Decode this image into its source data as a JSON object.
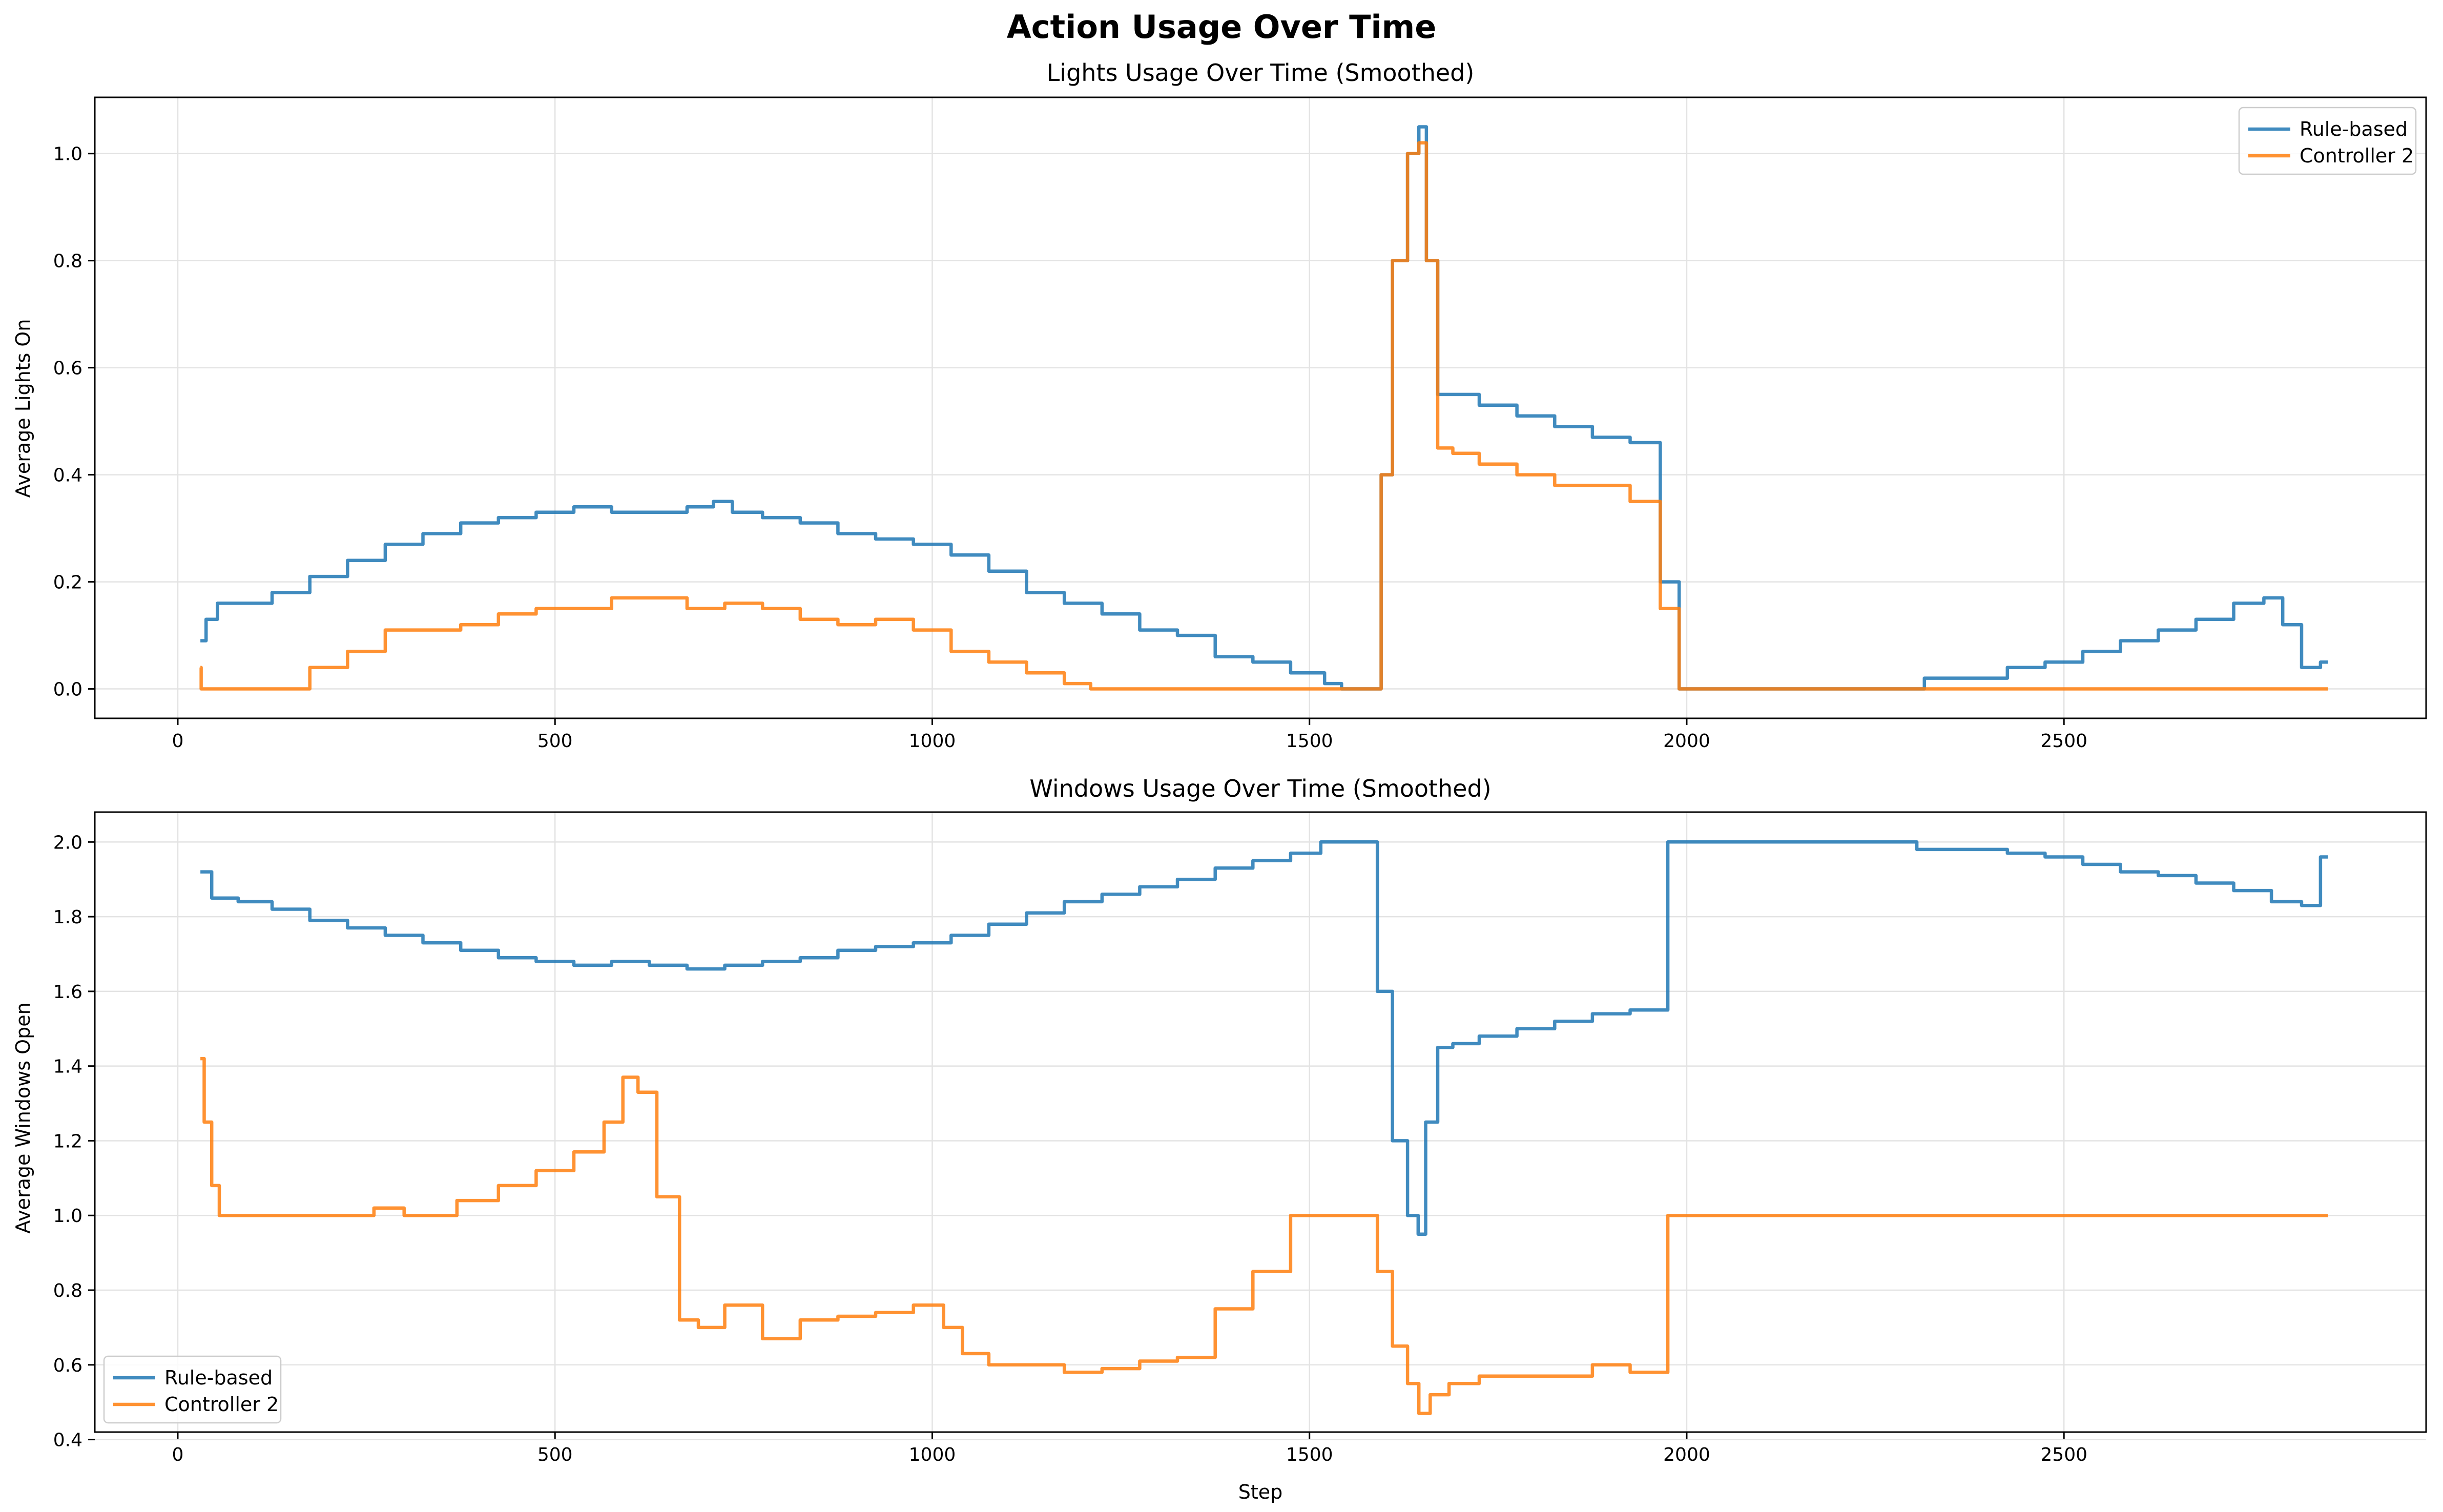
{
  "figure": {
    "suptitle": "Action Usage Over Time",
    "colors": {
      "rule": "#1f77b4",
      "ctrl": "#ff7f0e"
    },
    "grid": true
  },
  "chart_data": [
    {
      "type": "line",
      "title": "Lights Usage Over Time (Smoothed)",
      "xlabel": "",
      "ylabel": "Average Lights On",
      "xlim": [
        -110,
        2980
      ],
      "ylim": [
        -0.055,
        1.105
      ],
      "xticks": [
        0,
        500,
        1000,
        1500,
        2000,
        2500
      ],
      "xtick_labels": [
        "0",
        "500",
        "1000",
        "1500",
        "2000",
        "2500"
      ],
      "yticks": [
        0.0,
        0.2,
        0.4,
        0.6,
        0.8,
        1.0
      ],
      "ytick_labels": [
        "0.0",
        "0.2",
        "0.4",
        "0.6",
        "0.8",
        "1.0"
      ],
      "legend_position": "top-right",
      "series": [
        {
          "name": "Rule-based",
          "color": "#1f77b4",
          "x": [
            30,
            45,
            60,
            100,
            150,
            200,
            250,
            300,
            350,
            400,
            450,
            500,
            550,
            600,
            650,
            700,
            720,
            750,
            800,
            850,
            900,
            950,
            1000,
            1050,
            1100,
            1150,
            1200,
            1250,
            1300,
            1350,
            1400,
            1450,
            1500,
            1540,
            1545,
            1590,
            1600,
            1620,
            1640,
            1650,
            1660,
            1680,
            1700,
            1750,
            1800,
            1850,
            1900,
            1950,
            1980,
            2000,
            2100,
            2200,
            2310,
            2320,
            2400,
            2450,
            2500,
            2550,
            2600,
            2650,
            2700,
            2750,
            2780,
            2800,
            2830,
            2850
          ],
          "y": [
            0.09,
            0.13,
            0.16,
            0.16,
            0.18,
            0.21,
            0.24,
            0.27,
            0.29,
            0.31,
            0.32,
            0.33,
            0.34,
            0.33,
            0.33,
            0.34,
            0.35,
            0.33,
            0.32,
            0.31,
            0.29,
            0.28,
            0.27,
            0.25,
            0.22,
            0.18,
            0.16,
            0.14,
            0.11,
            0.1,
            0.06,
            0.05,
            0.03,
            0.01,
            0.0,
            0.0,
            0.4,
            0.8,
            1.0,
            1.05,
            0.8,
            0.55,
            0.55,
            0.53,
            0.51,
            0.49,
            0.47,
            0.46,
            0.2,
            0.0,
            0.0,
            0.0,
            0.0,
            0.02,
            0.02,
            0.04,
            0.05,
            0.07,
            0.09,
            0.11,
            0.13,
            0.16,
            0.17,
            0.12,
            0.04,
            0.05
          ]
        },
        {
          "name": "Controller 2",
          "color": "#ff7f0e",
          "x": [
            30,
            32,
            150,
            200,
            250,
            300,
            350,
            400,
            450,
            500,
            550,
            600,
            650,
            700,
            750,
            800,
            850,
            900,
            950,
            1000,
            1050,
            1100,
            1150,
            1200,
            1220,
            1590,
            1600,
            1620,
            1640,
            1650,
            1660,
            1680,
            1700,
            1750,
            1800,
            1850,
            1900,
            1950,
            1980,
            2000,
            2850
          ],
          "y": [
            0.04,
            0.0,
            0.0,
            0.04,
            0.07,
            0.11,
            0.11,
            0.12,
            0.14,
            0.15,
            0.15,
            0.17,
            0.17,
            0.15,
            0.16,
            0.15,
            0.13,
            0.12,
            0.13,
            0.11,
            0.07,
            0.05,
            0.03,
            0.01,
            0.0,
            0.0,
            0.4,
            0.8,
            1.0,
            1.02,
            0.8,
            0.45,
            0.44,
            0.42,
            0.4,
            0.38,
            0.38,
            0.35,
            0.15,
            0.0,
            0.0
          ]
        }
      ]
    },
    {
      "type": "line",
      "title": "Windows Usage Over Time (Smoothed)",
      "xlabel": "Step",
      "ylabel": "Average Windows Open",
      "xlim": [
        -110,
        2980
      ],
      "ylim": [
        0.42,
        2.08
      ],
      "xticks": [
        0,
        500,
        1000,
        1500,
        2000,
        2500
      ],
      "xtick_labels": [
        "0",
        "500",
        "1000",
        "1500",
        "2000",
        "2500"
      ],
      "yticks": [
        0.4,
        0.6,
        0.8,
        1.0,
        1.2,
        1.4,
        1.6,
        1.8,
        2.0
      ],
      "ytick_labels": [
        "0.4",
        "0.6",
        "0.8",
        "1.0",
        "1.2",
        "1.4",
        "1.6",
        "1.8",
        "2.0"
      ],
      "legend_position": "bottom-left",
      "series": [
        {
          "name": "Rule-based",
          "color": "#1f77b4",
          "x": [
            30,
            60,
            100,
            150,
            200,
            250,
            300,
            350,
            400,
            450,
            500,
            550,
            600,
            650,
            700,
            750,
            800,
            850,
            900,
            950,
            1000,
            1050,
            1100,
            1150,
            1200,
            1250,
            1300,
            1350,
            1400,
            1450,
            1500,
            1530,
            1580,
            1600,
            1620,
            1640,
            1648,
            1660,
            1680,
            1700,
            1750,
            1800,
            1850,
            1900,
            1950,
            2000,
            2100,
            2200,
            2300,
            2310,
            2400,
            2450,
            2500,
            2550,
            2600,
            2650,
            2700,
            2750,
            2800,
            2830,
            2850
          ],
          "y": [
            1.92,
            1.85,
            1.84,
            1.82,
            1.79,
            1.77,
            1.75,
            1.73,
            1.71,
            1.69,
            1.68,
            1.67,
            1.68,
            1.67,
            1.66,
            1.67,
            1.68,
            1.69,
            1.71,
            1.72,
            1.73,
            1.75,
            1.78,
            1.81,
            1.84,
            1.86,
            1.88,
            1.9,
            1.93,
            1.95,
            1.97,
            2.0,
            2.0,
            1.6,
            1.2,
            1.0,
            0.95,
            1.25,
            1.45,
            1.46,
            1.48,
            1.5,
            1.52,
            1.54,
            1.55,
            2.0,
            2.0,
            2.0,
            2.0,
            1.98,
            1.98,
            1.97,
            1.96,
            1.94,
            1.92,
            1.91,
            1.89,
            1.87,
            1.84,
            1.83,
            1.96
          ]
        },
        {
          "name": "Controller 2",
          "color": "#ff7f0e",
          "x": [
            30,
            40,
            50,
            60,
            100,
            150,
            200,
            250,
            270,
            330,
            340,
            400,
            450,
            500,
            550,
            580,
            600,
            620,
            650,
            680,
            700,
            750,
            800,
            850,
            900,
            950,
            1000,
            1030,
            1050,
            1100,
            1150,
            1200,
            1250,
            1300,
            1350,
            1400,
            1450,
            1500,
            1580,
            1600,
            1620,
            1640,
            1650,
            1670,
            1700,
            1750,
            1800,
            1850,
            1900,
            1950,
            2000,
            2850
          ],
          "y": [
            1.42,
            1.25,
            1.08,
            1.0,
            1.0,
            1.0,
            1.0,
            1.0,
            1.02,
            1.0,
            1.0,
            1.04,
            1.08,
            1.12,
            1.17,
            1.25,
            1.37,
            1.33,
            1.05,
            0.72,
            0.7,
            0.76,
            0.67,
            0.72,
            0.73,
            0.74,
            0.76,
            0.7,
            0.63,
            0.6,
            0.6,
            0.58,
            0.59,
            0.61,
            0.62,
            0.75,
            0.85,
            1.0,
            1.0,
            0.85,
            0.65,
            0.55,
            0.47,
            0.52,
            0.55,
            0.57,
            0.57,
            0.57,
            0.6,
            0.58,
            1.0,
            1.0
          ]
        }
      ]
    }
  ]
}
